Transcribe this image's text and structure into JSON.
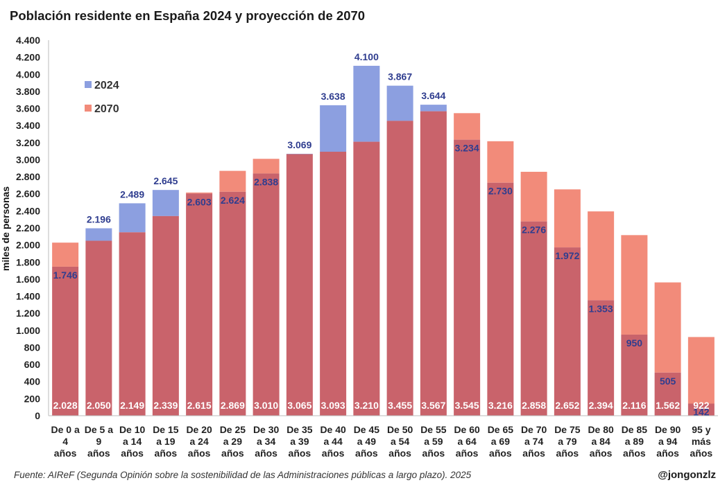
{
  "header": {
    "title": "Población residente en España 2024 y proyección de 2070"
  },
  "footer": {
    "source": "Fuente: AIReF (Segunda Opinión sobre la sostenibilidad de las Administraciones públicas a largo plazo). 2025",
    "handle": "@jongonzlz"
  },
  "chart_data": {
    "type": "bar",
    "title": "Población residente en España 2024 y proyección de 2070",
    "xlabel": "",
    "ylabel": "miles de personas",
    "ylim": [
      0,
      4400
    ],
    "yticks": [
      0,
      200,
      400,
      600,
      800,
      1000,
      1200,
      1400,
      1600,
      1800,
      2000,
      2200,
      2400,
      2600,
      2800,
      3000,
      3200,
      3400,
      3600,
      3800,
      4000,
      4200,
      4400
    ],
    "ytick_labels": [
      "0",
      "200",
      "400",
      "600",
      "800",
      "1.000",
      "1.200",
      "1.400",
      "1.600",
      "1.800",
      "2.000",
      "2.200",
      "2.400",
      "2.600",
      "2.800",
      "3.000",
      "3.200",
      "3.400",
      "3.600",
      "3.800",
      "4.000",
      "4.200",
      "4.400"
    ],
    "grid": false,
    "legend_position": "top-left",
    "categories": [
      [
        "De 0 a",
        "4",
        "años"
      ],
      [
        "De 5 a",
        "9",
        "años"
      ],
      [
        "De 10",
        "a 14",
        "años"
      ],
      [
        "De 15",
        "a 19",
        "años"
      ],
      [
        "De 20",
        "a 24",
        "años"
      ],
      [
        "De 25",
        "a 29",
        "años"
      ],
      [
        "De 30",
        "a 34",
        "años"
      ],
      [
        "De 35",
        "a 39",
        "años"
      ],
      [
        "De 40",
        "a 44",
        "años"
      ],
      [
        "De 45",
        "a 49",
        "años"
      ],
      [
        "De 50",
        "a 54",
        "años"
      ],
      [
        "De 55",
        "a 59",
        "años"
      ],
      [
        "De 60",
        "a 64",
        "años"
      ],
      [
        "De 65",
        "a 69",
        "años"
      ],
      [
        "De 70",
        "a 74",
        "años"
      ],
      [
        "De 75",
        "a 79",
        "años"
      ],
      [
        "De 80",
        "a 84",
        "años"
      ],
      [
        "De 85",
        "a 89",
        "años"
      ],
      [
        "De 90",
        "a 94",
        "años"
      ],
      [
        "95 y",
        "más",
        "años"
      ]
    ],
    "series": [
      {
        "name": "2024",
        "color": "#8c9fe0",
        "values": [
          1746,
          2196,
          2489,
          2645,
          2603,
          2624,
          2838,
          3069,
          3638,
          4100,
          3867,
          3644,
          3234,
          2730,
          2276,
          1972,
          1353,
          950,
          505,
          142
        ],
        "labels": [
          "1.746",
          "2.196",
          "2.489",
          "2.645",
          "2.603",
          "2.624",
          "2.838",
          "3.069",
          "3.638",
          "4.100",
          "3.867",
          "3.644",
          "3.234",
          "2.730",
          "2.276",
          "1.972",
          "1.353",
          "950",
          "505",
          "142"
        ]
      },
      {
        "name": "2070",
        "color": "#f28b7a",
        "values": [
          2028,
          2050,
          2149,
          2339,
          2615,
          2869,
          3010,
          3065,
          3093,
          3210,
          3455,
          3567,
          3545,
          3216,
          2858,
          2652,
          2394,
          2116,
          1562,
          922
        ],
        "labels": [
          "2.028",
          "2.050",
          "2.149",
          "2.339",
          "2.615",
          "2.869",
          "3.010",
          "3.065",
          "3.093",
          "3.210",
          "3.455",
          "3.567",
          "3.545",
          "3.216",
          "2.858",
          "2.652",
          "2.394",
          "2.116",
          "1.562",
          "922"
        ]
      }
    ],
    "overlap_color": "#c9636b"
  }
}
